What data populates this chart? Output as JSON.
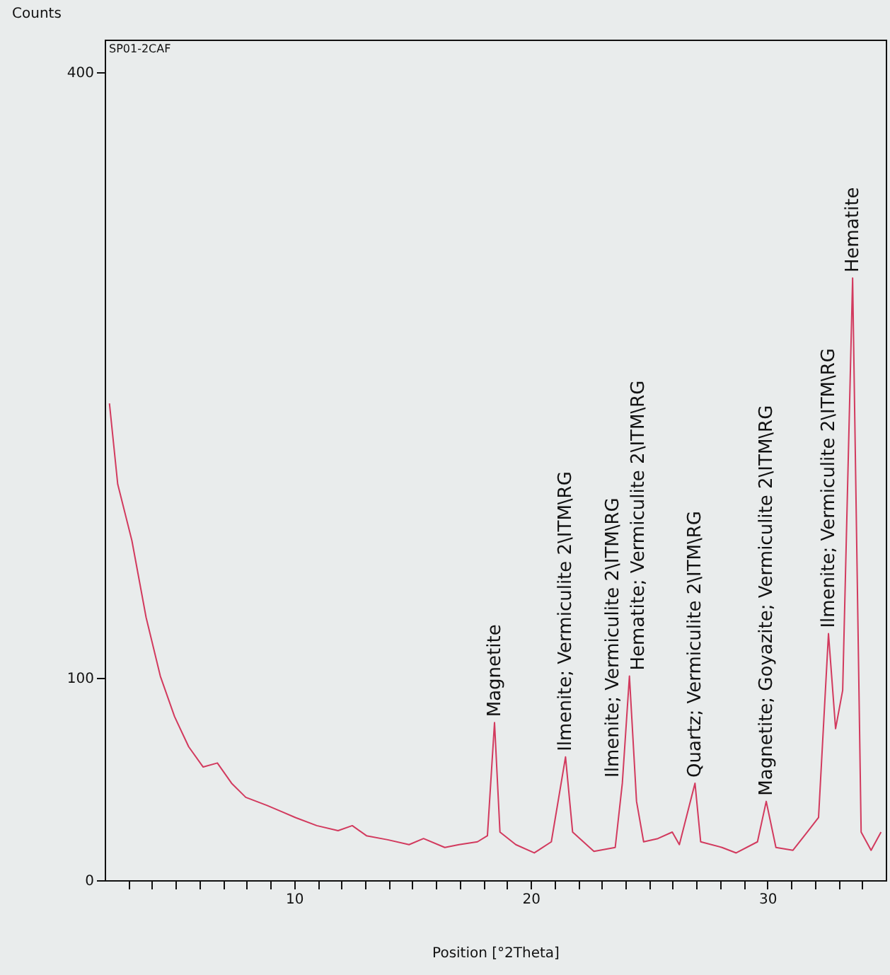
{
  "chart_data": {
    "type": "line",
    "xlabel": "Position [°2Theta]",
    "ylabel": "Counts",
    "x": [
      2.2,
      2.55,
      3.15,
      3.75,
      4.35,
      4.95,
      5.55,
      6.16,
      6.76,
      7.36,
      7.96,
      8.86,
      9.46,
      10.06,
      10.96,
      11.86,
      12.46,
      13.06,
      13.96,
      14.86,
      15.47,
      16.37,
      16.97,
      17.75,
      18.17,
      18.47,
      18.7,
      19.37,
      20.15,
      20.87,
      21.47,
      21.77,
      22.67,
      23.57,
      23.87,
      24.17,
      24.47,
      24.77,
      25.37,
      25.98,
      26.28,
      26.94,
      27.18,
      28.08,
      28.68,
      29.58,
      29.95,
      30.36,
      31.08,
      31.68,
      32.16,
      32.58,
      32.88,
      33.18,
      33.6,
      33.96,
      34.38,
      34.8
    ],
    "series": [
      {
        "color": "#d23a5e",
        "values": [
          236,
          196,
          168,
          130,
          101,
          81,
          66,
          56,
          58,
          48,
          41,
          37,
          34,
          31,
          27,
          24.5,
          27,
          22,
          20,
          17.6,
          20.6,
          16.2,
          17.6,
          19,
          22,
          78,
          23.8,
          17.6,
          13.5,
          19,
          61,
          23.8,
          14.3,
          16.2,
          48,
          101,
          39,
          19,
          20.6,
          23.8,
          17.6,
          48,
          19,
          16.2,
          13.5,
          19,
          39,
          16.2,
          14.8,
          23.8,
          31,
          122,
          75,
          94,
          298,
          23.8,
          14.8,
          23.8
        ]
      }
    ],
    "xlim": [
      2,
      35
    ],
    "ylim": [
      0,
      416
    ],
    "xticks": [
      {
        "value": 3,
        "label": null
      },
      {
        "value": 4,
        "label": null
      },
      {
        "value": 5,
        "label": null
      },
      {
        "value": 6,
        "label": null
      },
      {
        "value": 7,
        "label": null
      },
      {
        "value": 8,
        "label": null
      },
      {
        "value": 9,
        "label": null
      },
      10,
      {
        "value": 11,
        "label": null
      },
      {
        "value": 12,
        "label": null
      },
      {
        "value": 13,
        "label": null
      },
      {
        "value": 14,
        "label": null
      },
      {
        "value": 15,
        "label": null
      },
      {
        "value": 16,
        "label": null
      },
      {
        "value": 17,
        "label": null
      },
      {
        "value": 18,
        "label": null
      },
      {
        "value": 19,
        "label": null
      },
      20,
      {
        "value": 21,
        "label": null
      },
      {
        "value": 22,
        "label": null
      },
      {
        "value": 23,
        "label": null
      },
      {
        "value": 24,
        "label": null
      },
      {
        "value": 25,
        "label": null
      },
      {
        "value": 26,
        "label": null
      },
      {
        "value": 27,
        "label": null
      },
      {
        "value": 28,
        "label": null
      },
      {
        "value": 29,
        "label": null
      },
      30,
      {
        "value": 31,
        "label": null
      },
      {
        "value": 32,
        "label": null
      },
      {
        "value": 33,
        "label": null
      },
      {
        "value": 34,
        "label": null
      }
    ],
    "yticks": [
      0,
      100,
      400
    ],
    "grid": false,
    "annotations": [
      "SP01-2CAF",
      {
        "text": "Magnetite",
        "x": 18.47,
        "y": 78
      },
      {
        "text": "Ilmenite; Vermiculite 2\\ITM\\RG",
        "x": 21.47,
        "y": 61
      },
      {
        "text": "Ilmenite; Vermiculite 2\\ITM\\RG",
        "x": 23.87,
        "y": 48
      },
      {
        "text": "Hematite; Vermiculite 2\\ITM\\RG",
        "x": 24.17,
        "y": 101
      },
      {
        "text": "Quartz; Vermiculite 2\\ITM\\RG",
        "x": 26.94,
        "y": 48
      },
      {
        "text": "Magnetite; Goyazite; Vermiculite 2\\ITM\\RG",
        "x": 29.95,
        "y": 39
      },
      {
        "text": "Ilmenite; Vermiculite 2\\ITM\\RG",
        "x": 32.58,
        "y": 122
      },
      {
        "text": "Hematite",
        "x": 33.6,
        "y": 298
      }
    ]
  }
}
